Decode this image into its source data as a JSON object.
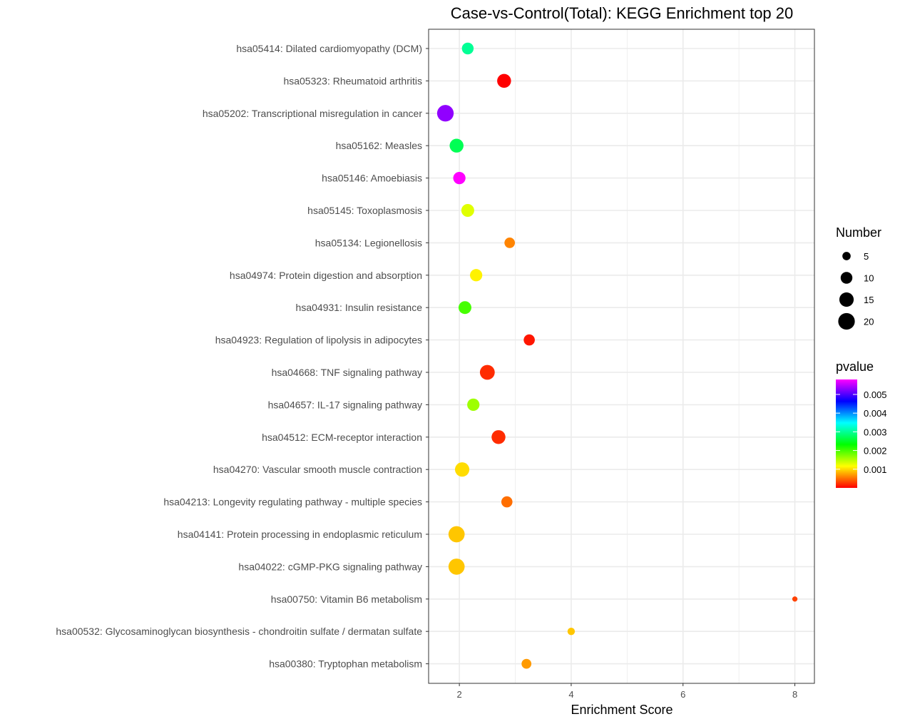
{
  "chart_data": {
    "type": "scatter",
    "title": "Case-vs-Control(Total): KEGG Enrichment top 20",
    "xlabel": "Enrichment Score",
    "ylabel": "",
    "xlim": [
      1.45,
      8.35
    ],
    "x_ticks": [
      "2",
      "4",
      "6",
      "8"
    ],
    "grid": true,
    "categories": [
      "hsa05414: Dilated cardiomyopathy (DCM)",
      "hsa05323: Rheumatoid arthritis",
      "hsa05202: Transcriptional misregulation in cancer",
      "hsa05162: Measles",
      "hsa05146: Amoebiasis",
      "hsa05145: Toxoplasmosis",
      "hsa05134: Legionellosis",
      "hsa04974: Protein digestion and absorption",
      "hsa04931: Insulin resistance",
      "hsa04923: Regulation of lipolysis in adipocytes",
      "hsa04668: TNF signaling pathway",
      "hsa04657: IL-17 signaling pathway",
      "hsa04512: ECM-receptor interaction",
      "hsa04270: Vascular smooth muscle contraction",
      "hsa04213: Longevity regulating pathway - multiple species",
      "hsa04141: Protein processing in endoplasmic reticulum",
      "hsa04022: cGMP-PKG signaling pathway",
      "hsa00750: Vitamin B6 metabolism",
      "hsa00532: Glycosaminoglycan biosynthesis - chondroitin sulfate / dermatan sulfate",
      "hsa00380: Tryptophan metabolism"
    ],
    "points": [
      {
        "enrichment": 2.15,
        "number": 10,
        "pvalue": 0.003
      },
      {
        "enrichment": 2.8,
        "number": 14,
        "pvalue": 0.0
      },
      {
        "enrichment": 1.75,
        "number": 20,
        "pvalue": 0.0053
      },
      {
        "enrichment": 1.95,
        "number": 14,
        "pvalue": 0.0027
      },
      {
        "enrichment": 2.0,
        "number": 11,
        "pvalue": 0.0058
      },
      {
        "enrichment": 2.15,
        "number": 12,
        "pvalue": 0.0013
      },
      {
        "enrichment": 2.9,
        "number": 8,
        "pvalue": 0.0006
      },
      {
        "enrichment": 2.3,
        "number": 11,
        "pvalue": 0.0011
      },
      {
        "enrichment": 2.1,
        "number": 12,
        "pvalue": 0.002
      },
      {
        "enrichment": 3.25,
        "number": 9,
        "pvalue": 0.0001
      },
      {
        "enrichment": 2.5,
        "number": 16,
        "pvalue": 0.0002
      },
      {
        "enrichment": 2.25,
        "number": 11,
        "pvalue": 0.0016
      },
      {
        "enrichment": 2.7,
        "number": 14,
        "pvalue": 0.0002
      },
      {
        "enrichment": 2.05,
        "number": 15,
        "pvalue": 0.001
      },
      {
        "enrichment": 2.85,
        "number": 9,
        "pvalue": 0.0005
      },
      {
        "enrichment": 1.95,
        "number": 19,
        "pvalue": 0.0009
      },
      {
        "enrichment": 1.95,
        "number": 19,
        "pvalue": 0.0009
      },
      {
        "enrichment": 8.0,
        "number": 2,
        "pvalue": 0.0003
      },
      {
        "enrichment": 4.0,
        "number": 4,
        "pvalue": 0.0009
      },
      {
        "enrichment": 3.2,
        "number": 7,
        "pvalue": 0.0007
      }
    ],
    "size_legend": {
      "title": "Number",
      "entries": [
        {
          "label": "5",
          "value": 5
        },
        {
          "label": "10",
          "value": 10
        },
        {
          "label": "15",
          "value": 15
        },
        {
          "label": "20",
          "value": 20
        }
      ]
    },
    "color_legend": {
      "title": "pvalue",
      "range": [
        0,
        0.0058
      ],
      "ticks": [
        {
          "label": "0.005",
          "value": 0.005
        },
        {
          "label": "0.004",
          "value": 0.004
        },
        {
          "label": "0.003",
          "value": 0.003
        },
        {
          "label": "0.002",
          "value": 0.002
        },
        {
          "label": "0.001",
          "value": 0.001
        }
      ],
      "colors": [
        "#ff0000",
        "#ffff00",
        "#00ff00",
        "#00ffff",
        "#0000ff",
        "#ff00ff"
      ]
    },
    "legend_position": "right"
  }
}
